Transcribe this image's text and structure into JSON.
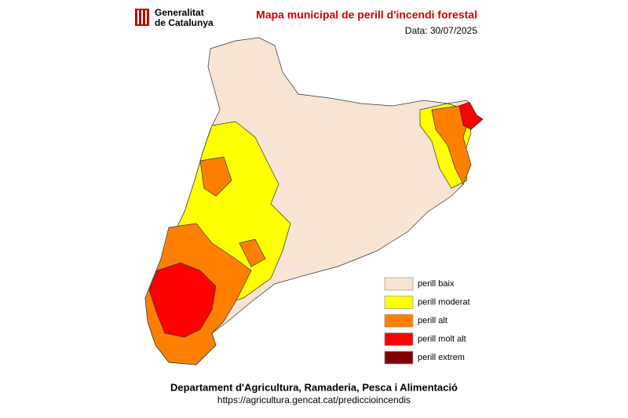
{
  "header": {
    "logo_line1": "Generalitat",
    "logo_line2": "de Catalunya",
    "title": "Mapa municipal de perill d'incendi forestal",
    "date": "Data: 30/07/2025"
  },
  "legend": [
    {
      "label": "perill baix",
      "color": "#f7e4d3"
    },
    {
      "label": "perill moderat",
      "color": "#ffff00"
    },
    {
      "label": "perill alt",
      "color": "#ff8000"
    },
    {
      "label": "perill molt alt",
      "color": "#ff0000"
    },
    {
      "label": "perill extrem",
      "color": "#800000"
    }
  ],
  "footer": {
    "department": "Departament d'Agricultura, Ramaderia, Pesca i Alimentació",
    "url": "https://agricultura.gencat.cat/prediccioincendis"
  }
}
